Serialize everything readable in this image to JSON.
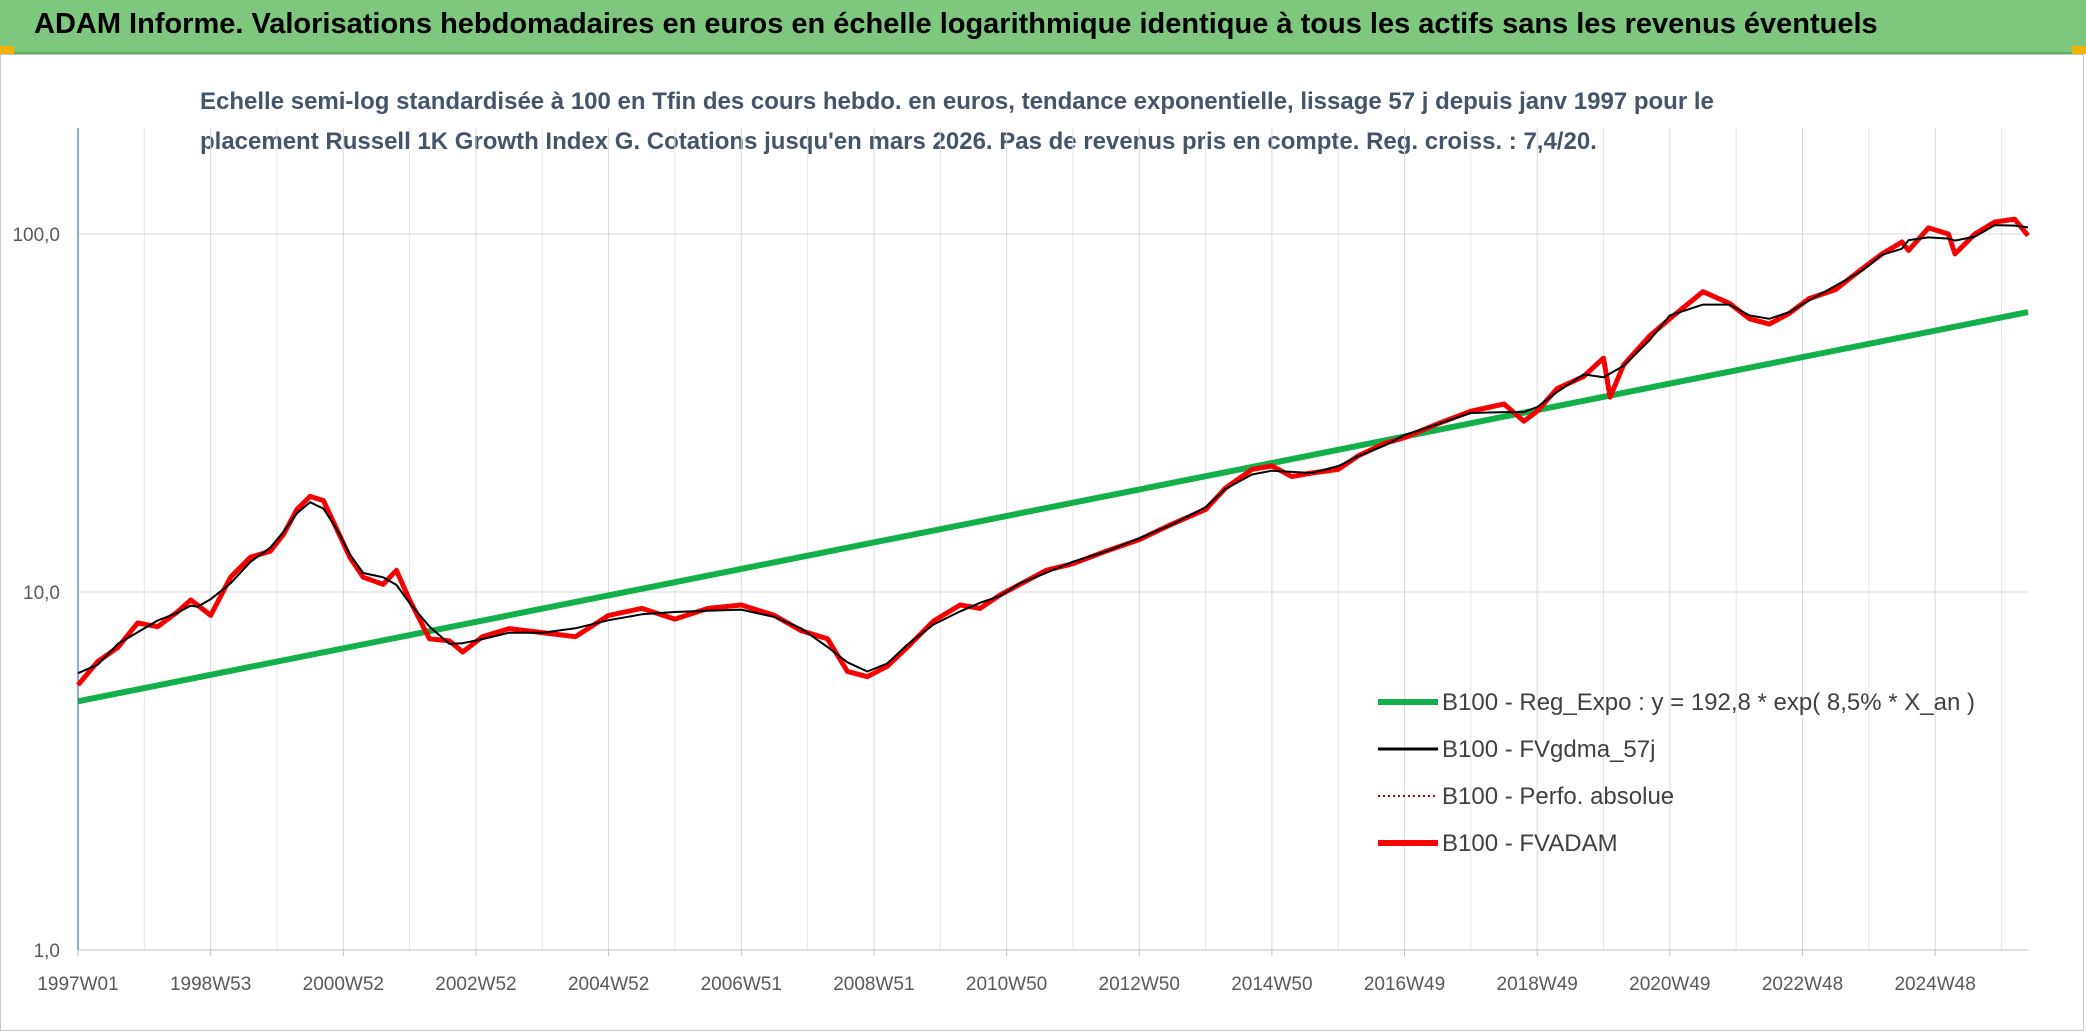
{
  "header": {
    "title": "ADAM Informe. Valorisations hebdomadaires en euros en échelle logarithmique identique à tous les actifs sans les revenus éventuels"
  },
  "chart_data": {
    "type": "line",
    "title_line1": "Echelle semi-log standardisée à 100 en Tfin des cours hebdo. en euros, tendance exponentielle, lissage 57 j depuis janv 1997 pour le",
    "title_line2": "placement Russell 1K Growth Index G. Cotations jusqu'en mars 2026. Pas de revenus pris en compte. Reg. croiss. : 7,4/20.",
    "y_scale": "log",
    "ylim": [
      1,
      200
    ],
    "y_ticks": [
      {
        "value": 1,
        "label": "1,0"
      },
      {
        "value": 10,
        "label": "10,0"
      },
      {
        "value": 100,
        "label": "100,0"
      }
    ],
    "x_range": [
      1997.0,
      2026.4
    ],
    "x_ticks": [
      {
        "value": 1997.0,
        "label": "1997W01"
      },
      {
        "value": 1999.0,
        "label": "1998W53"
      },
      {
        "value": 2001.0,
        "label": "2000W52"
      },
      {
        "value": 2003.0,
        "label": "2002W52"
      },
      {
        "value": 2005.0,
        "label": "2004W52"
      },
      {
        "value": 2007.0,
        "label": "2006W51"
      },
      {
        "value": 2009.0,
        "label": "2008W51"
      },
      {
        "value": 2011.0,
        "label": "2010W50"
      },
      {
        "value": 2013.0,
        "label": "2012W50"
      },
      {
        "value": 2015.0,
        "label": "2014W50"
      },
      {
        "value": 2017.0,
        "label": "2016W49"
      },
      {
        "value": 2019.0,
        "label": "2018W49"
      },
      {
        "value": 2021.0,
        "label": "2020W49"
      },
      {
        "value": 2023.0,
        "label": "2022W48"
      },
      {
        "value": 2025.0,
        "label": "2024W48"
      }
    ],
    "grid": true,
    "legend_position": "bottom-right",
    "series": [
      {
        "name": "B100 - Reg_Expo : y = 192,8 * exp( 8,5% *  X_an )",
        "color": "#12b04a",
        "style": "solid",
        "x": [
          1997.0,
          2026.4
        ],
        "values": [
          4.95,
          60.5
        ]
      },
      {
        "name": "B100 - FVgdma_57j",
        "color": "#000000",
        "style": "solid",
        "smoothed_of": "B100 - FVADAM"
      },
      {
        "name": "B100 - Perfo. absolue",
        "color": "#c00000",
        "style": "dotted",
        "same_as": "B100 - FVADAM"
      },
      {
        "name": "B100 - FVADAM",
        "color": "#ff0000",
        "style": "solid",
        "x": [
          1997.0,
          1997.3,
          1997.6,
          1997.9,
          1998.2,
          1998.5,
          1998.7,
          1998.8,
          1999.0,
          1999.3,
          1999.6,
          1999.9,
          2000.1,
          2000.3,
          2000.5,
          2000.7,
          2000.9,
          2001.1,
          2001.3,
          2001.6,
          2001.8,
          2002.0,
          2002.3,
          2002.6,
          2002.8,
          2003.1,
          2003.5,
          2004.0,
          2004.5,
          2005.0,
          2005.5,
          2006.0,
          2006.5,
          2007.0,
          2007.5,
          2007.9,
          2008.3,
          2008.6,
          2008.9,
          2009.2,
          2009.5,
          2009.9,
          2010.3,
          2010.6,
          2010.9,
          2011.2,
          2011.6,
          2012.0,
          2012.5,
          2013.0,
          2013.5,
          2014.0,
          2014.3,
          2014.7,
          2015.0,
          2015.3,
          2015.6,
          2016.0,
          2016.3,
          2016.7,
          2017.0,
          2017.5,
          2018.0,
          2018.5,
          2018.8,
          2019.0,
          2019.3,
          2019.7,
          2020.0,
          2020.1,
          2020.3,
          2020.7,
          2021.0,
          2021.5,
          2021.9,
          2022.2,
          2022.5,
          2022.8,
          2023.1,
          2023.5,
          2023.9,
          2024.2,
          2024.5,
          2024.6,
          2024.9,
          2025.2,
          2025.3,
          2025.6,
          2025.9,
          2026.2,
          2026.4
        ],
        "values": [
          5.5,
          6.4,
          7.0,
          8.2,
          8.0,
          8.8,
          9.5,
          9.2,
          8.6,
          11.0,
          12.5,
          13.0,
          14.5,
          17.0,
          18.5,
          18.0,
          15.0,
          12.5,
          11.0,
          10.5,
          11.5,
          9.5,
          7.4,
          7.3,
          6.8,
          7.5,
          7.9,
          7.7,
          7.5,
          8.6,
          9.0,
          8.4,
          9.0,
          9.2,
          8.6,
          7.8,
          7.4,
          6.0,
          5.8,
          6.2,
          7.0,
          8.3,
          9.2,
          9.0,
          9.8,
          10.5,
          11.5,
          12.0,
          13.0,
          14.0,
          15.5,
          17.0,
          19.5,
          22.0,
          22.5,
          21.0,
          21.5,
          22.0,
          24.0,
          26.0,
          27.0,
          29.5,
          32.0,
          33.5,
          30.0,
          32.0,
          37.0,
          40.0,
          45.0,
          35.0,
          43.0,
          52.0,
          58.0,
          69.0,
          64.0,
          58.0,
          56.0,
          60.0,
          66.0,
          70.0,
          80.0,
          88.0,
          95.0,
          90.0,
          104.0,
          100.0,
          88.0,
          100.0,
          108.0,
          110.0,
          99.0
        ]
      }
    ]
  }
}
